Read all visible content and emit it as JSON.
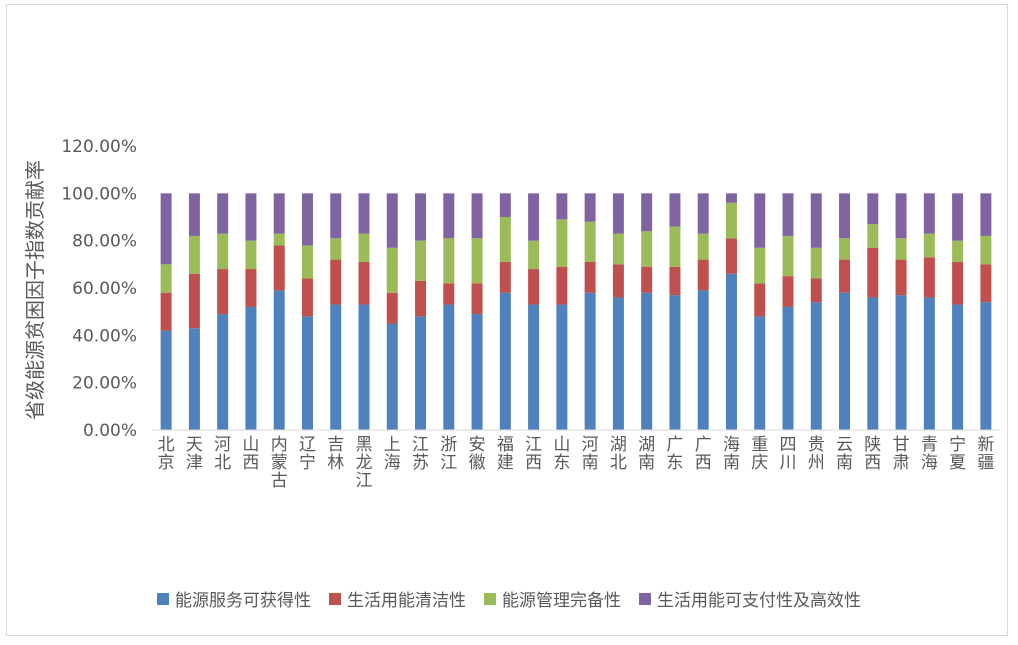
{
  "chart_data": {
    "type": "bar",
    "stacked": true,
    "ylabel": "省级能源贫困因子指数贡献率",
    "ylim": [
      0,
      1.2
    ],
    "yticks": [
      "0.00%",
      "20.00%",
      "40.00%",
      "60.00%",
      "80.00%",
      "100.00%",
      "120.00%"
    ],
    "categories": [
      "北京",
      "天津",
      "河北",
      "山西",
      "内蒙古",
      "辽宁",
      "吉林",
      "黑龙江",
      "上海",
      "江苏",
      "浙江",
      "安徽",
      "福建",
      "江西",
      "山东",
      "河南",
      "湖北",
      "湖南",
      "广东",
      "广西",
      "海南",
      "重庆",
      "四川",
      "贵州",
      "云南",
      "陕西",
      "甘肃",
      "青海",
      "宁夏",
      "新疆"
    ],
    "series": [
      {
        "name": "能源服务可获得性",
        "color": "#4f81bd",
        "values": [
          0.42,
          0.43,
          0.49,
          0.52,
          0.59,
          0.48,
          0.53,
          0.53,
          0.45,
          0.48,
          0.53,
          0.49,
          0.58,
          0.53,
          0.53,
          0.58,
          0.56,
          0.58,
          0.57,
          0.59,
          0.66,
          0.48,
          0.52,
          0.54,
          0.58,
          0.56,
          0.57,
          0.56,
          0.53,
          0.54
        ]
      },
      {
        "name": "生活用能清洁性",
        "color": "#c0504d",
        "values": [
          0.16,
          0.23,
          0.19,
          0.16,
          0.19,
          0.16,
          0.19,
          0.18,
          0.13,
          0.15,
          0.09,
          0.13,
          0.13,
          0.15,
          0.16,
          0.13,
          0.14,
          0.11,
          0.12,
          0.13,
          0.15,
          0.14,
          0.13,
          0.1,
          0.14,
          0.21,
          0.15,
          0.17,
          0.18,
          0.16
        ]
      },
      {
        "name": "能源管理完备性",
        "color": "#9bbb59",
        "values": [
          0.12,
          0.16,
          0.15,
          0.12,
          0.05,
          0.14,
          0.09,
          0.12,
          0.19,
          0.17,
          0.19,
          0.19,
          0.19,
          0.12,
          0.2,
          0.17,
          0.13,
          0.15,
          0.17,
          0.11,
          0.15,
          0.15,
          0.17,
          0.13,
          0.09,
          0.1,
          0.09,
          0.1,
          0.09,
          0.12
        ]
      },
      {
        "name": "生活用能可支付性及高效性",
        "color": "#8064a2",
        "values": [
          0.3,
          0.18,
          0.17,
          0.2,
          0.17,
          0.22,
          0.19,
          0.17,
          0.23,
          0.2,
          0.19,
          0.19,
          0.1,
          0.2,
          0.11,
          0.12,
          0.17,
          0.16,
          0.14,
          0.17,
          0.04,
          0.23,
          0.18,
          0.23,
          0.19,
          0.13,
          0.19,
          0.17,
          0.2,
          0.18
        ]
      }
    ],
    "legend_position": "bottom",
    "grid": false
  }
}
